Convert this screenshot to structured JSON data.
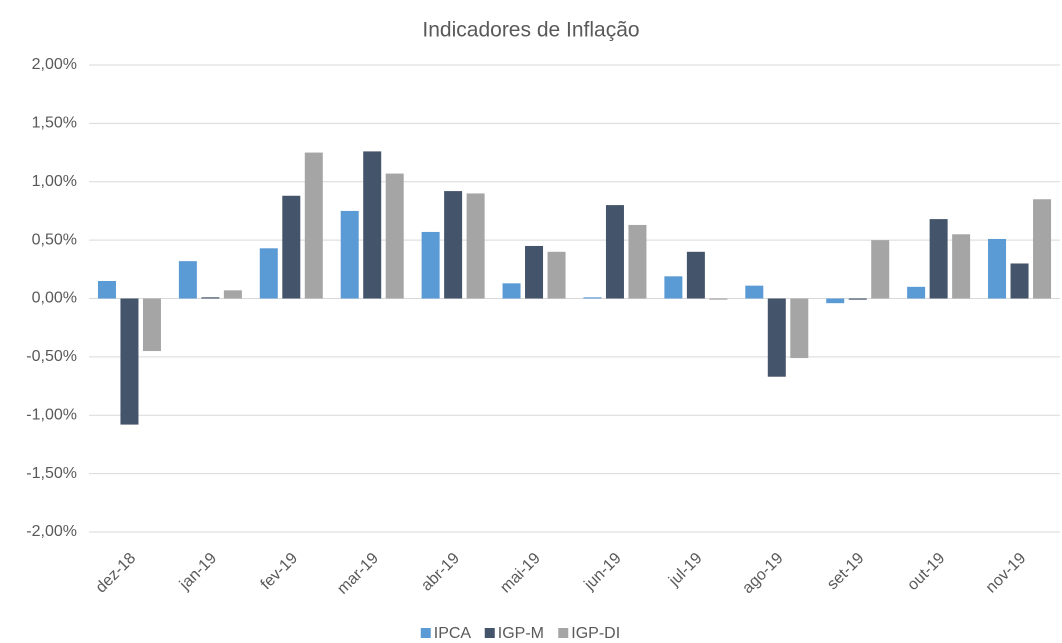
{
  "chart_data": {
    "type": "bar",
    "title": "Indicadores de Inflação",
    "categories": [
      "dez-18",
      "jan-19",
      "fev-19",
      "mar-19",
      "abr-19",
      "mai-19",
      "jun-19",
      "jul-19",
      "ago-19",
      "set-19",
      "out-19",
      "nov-19"
    ],
    "series": [
      {
        "name": "IPCA",
        "color": "#5b9bd5",
        "values": [
          0.15,
          0.32,
          0.43,
          0.75,
          0.57,
          0.13,
          0.01,
          0.19,
          0.11,
          -0.04,
          0.1,
          0.51
        ]
      },
      {
        "name": "IGP-M",
        "color": "#44546a",
        "values": [
          -1.08,
          0.01,
          0.88,
          1.26,
          0.92,
          0.45,
          0.8,
          0.4,
          -0.67,
          -0.01,
          0.68,
          0.3
        ]
      },
      {
        "name": "IGP-DI",
        "color": "#a5a5a5",
        "values": [
          -0.45,
          0.07,
          1.25,
          1.07,
          0.9,
          0.4,
          0.63,
          -0.01,
          -0.51,
          0.5,
          0.55,
          0.85
        ]
      }
    ],
    "ylim": [
      -2,
      2
    ],
    "yticks": [
      {
        "value": -2,
        "label": "-2,00%"
      },
      {
        "value": -1.5,
        "label": "-1,50%"
      },
      {
        "value": -1,
        "label": "-1,00%"
      },
      {
        "value": -0.5,
        "label": "-0,50%"
      },
      {
        "value": 0,
        "label": "0,00%"
      },
      {
        "value": 0.5,
        "label": "0,50%"
      },
      {
        "value": 1,
        "label": "1,00%"
      },
      {
        "value": 1.5,
        "label": "1,50%"
      },
      {
        "value": 2,
        "label": "2,00%"
      }
    ],
    "grid": true,
    "legend": "bottom"
  }
}
